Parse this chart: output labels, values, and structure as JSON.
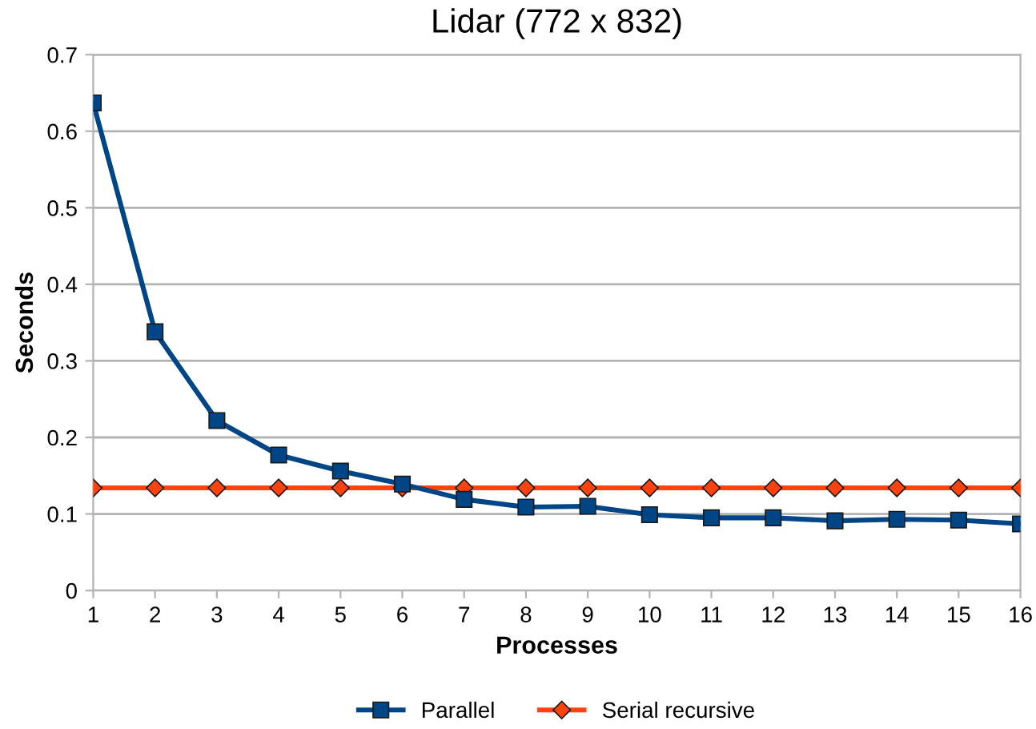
{
  "chart_data": {
    "type": "line",
    "title": "Lidar (772 x 832)",
    "xlabel": "Processes",
    "ylabel": "Seconds",
    "x": [
      1,
      2,
      3,
      4,
      5,
      6,
      7,
      8,
      9,
      10,
      11,
      12,
      13,
      14,
      15,
      16
    ],
    "xlim": [
      1,
      16
    ],
    "xticks": [
      1,
      2,
      3,
      4,
      5,
      6,
      7,
      8,
      9,
      10,
      11,
      12,
      13,
      14,
      15,
      16
    ],
    "ylim": [
      0,
      0.7
    ],
    "yticks": [
      0,
      0.1,
      0.2,
      0.3,
      0.4,
      0.5,
      0.6,
      0.7
    ],
    "grid": "y",
    "legend": "bottom",
    "series": [
      {
        "name": "Parallel",
        "color": "#004586",
        "marker": "square",
        "values": [
          0.637,
          0.338,
          0.222,
          0.177,
          0.156,
          0.139,
          0.119,
          0.109,
          0.11,
          0.099,
          0.095,
          0.095,
          0.091,
          0.093,
          0.092,
          0.087
        ]
      },
      {
        "name": "Serial recursive",
        "color": "#ff420e",
        "marker": "diamond",
        "values": [
          0.134,
          0.134,
          0.134,
          0.134,
          0.134,
          0.134,
          0.134,
          0.134,
          0.134,
          0.134,
          0.134,
          0.134,
          0.134,
          0.134,
          0.134,
          0.134
        ]
      }
    ]
  }
}
